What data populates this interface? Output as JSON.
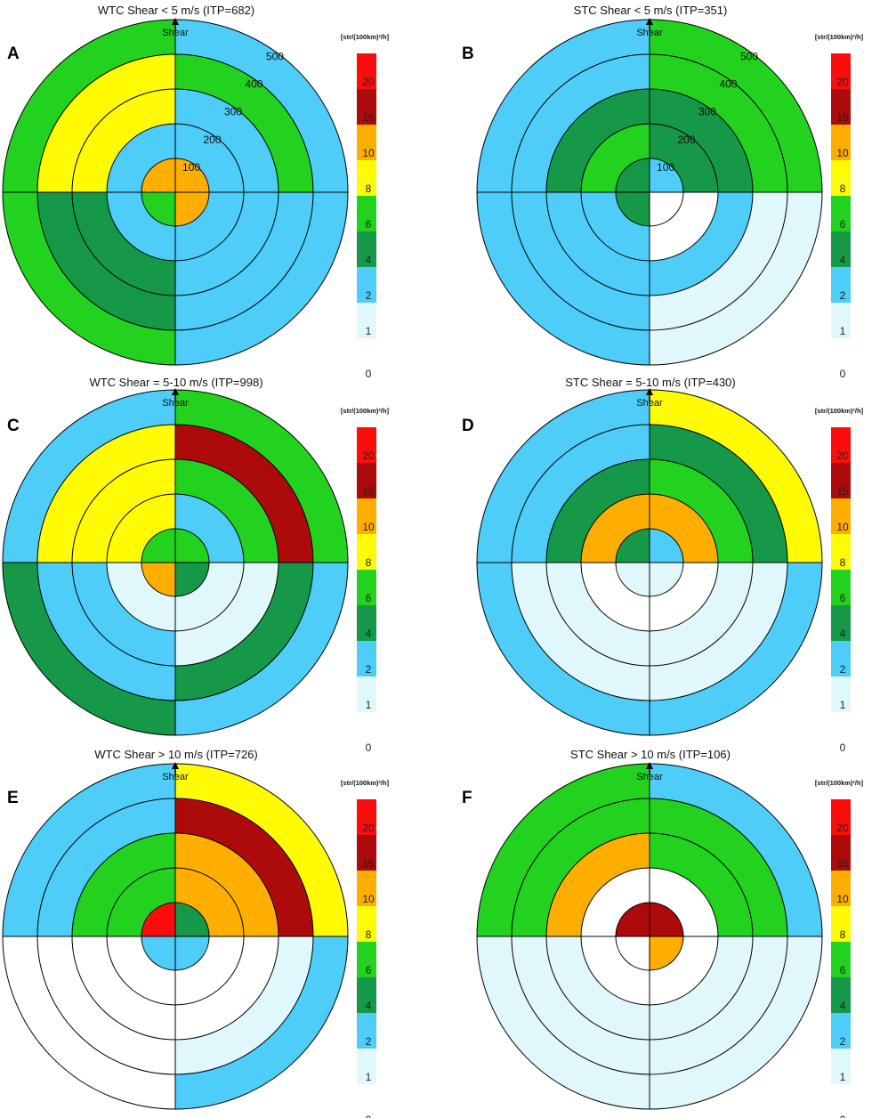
{
  "colorbar": {
    "unit_label": "[str/(100km)²/h]",
    "levels": [
      0,
      1,
      2,
      4,
      6,
      8,
      10,
      15,
      20
    ],
    "colors": [
      "#ffffff",
      "#e0f8fc",
      "#4dcdf8",
      "#159847",
      "#22d21f",
      "#fefb04",
      "#feae00",
      "#ad0a0b",
      "#fb0d0c"
    ]
  },
  "shear_label": "Shear",
  "chart_data": [
    {
      "type": "heatmap",
      "panel": "A",
      "title": "WTC Shear < 5 m/s (ITP=682)",
      "radius_ticks": [
        "100",
        "200",
        "300",
        "400",
        "500"
      ],
      "quadrant_order": [
        "NE",
        "SE",
        "SW",
        "NW"
      ],
      "rings": [
        [
          10,
          12,
          6,
          10
        ],
        [
          3,
          3,
          3,
          3
        ],
        [
          3,
          3,
          5,
          9
        ],
        [
          7,
          3,
          5,
          9
        ],
        [
          3,
          3,
          7,
          7
        ]
      ]
    },
    {
      "type": "heatmap",
      "panel": "B",
      "title": "STC Shear < 5 m/s (ITP=351)",
      "radius_ticks": [
        "100",
        "200",
        "300",
        "400",
        "500"
      ],
      "quadrant_order": [
        "NE",
        "SE",
        "SW",
        "NW"
      ],
      "rings": [
        [
          3,
          0,
          5,
          5
        ],
        [
          5,
          0,
          3,
          7
        ],
        [
          5,
          3,
          3,
          5
        ],
        [
          7,
          1.5,
          3,
          3
        ],
        [
          7,
          1.5,
          3,
          3
        ]
      ]
    },
    {
      "type": "heatmap",
      "panel": "C",
      "title": "WTC Shear = 5-10 m/s (ITP=998)",
      "radius_ticks": [],
      "quadrant_order": [
        "NE",
        "SE",
        "SW",
        "NW"
      ],
      "rings": [
        [
          7,
          5,
          12,
          7
        ],
        [
          3,
          1.5,
          1.5,
          9
        ],
        [
          7,
          1.5,
          3,
          9
        ],
        [
          17,
          5,
          3,
          9
        ],
        [
          7,
          3,
          5,
          3
        ]
      ]
    },
    {
      "type": "heatmap",
      "panel": "D",
      "title": "STC Shear = 5-10 m/s (ITP=430)",
      "radius_ticks": [],
      "quadrant_order": [
        "NE",
        "SE",
        "SW",
        "NW"
      ],
      "rings": [
        [
          3,
          1.5,
          1.5,
          5
        ],
        [
          12,
          0,
          0,
          12
        ],
        [
          7,
          1.5,
          1.5,
          5
        ],
        [
          5,
          1.5,
          1.5,
          3
        ],
        [
          9,
          3,
          3,
          3
        ]
      ]
    },
    {
      "type": "heatmap",
      "panel": "E",
      "title": "WTC Shear > 10 m/s (ITP=726)",
      "radius_ticks": [],
      "quadrant_order": [
        "NE",
        "SE",
        "SW",
        "NW"
      ],
      "rings": [
        [
          5,
          3,
          3,
          22
        ],
        [
          12,
          0,
          0,
          7
        ],
        [
          12,
          0,
          0,
          7
        ],
        [
          17,
          1.5,
          0,
          3
        ],
        [
          9,
          3,
          0,
          3
        ]
      ]
    },
    {
      "type": "heatmap",
      "panel": "F",
      "title": "STC Shear > 10 m/s (ITP=106)",
      "radius_ticks": [],
      "quadrant_order": [
        "NE",
        "SE",
        "SW",
        "NW"
      ],
      "rings": [
        [
          17,
          12,
          0,
          17
        ],
        [
          0,
          0,
          0,
          0
        ],
        [
          7,
          1.5,
          1.5,
          12
        ],
        [
          7,
          1.5,
          1.5,
          7
        ],
        [
          3,
          1.5,
          1.5,
          7
        ]
      ]
    }
  ]
}
